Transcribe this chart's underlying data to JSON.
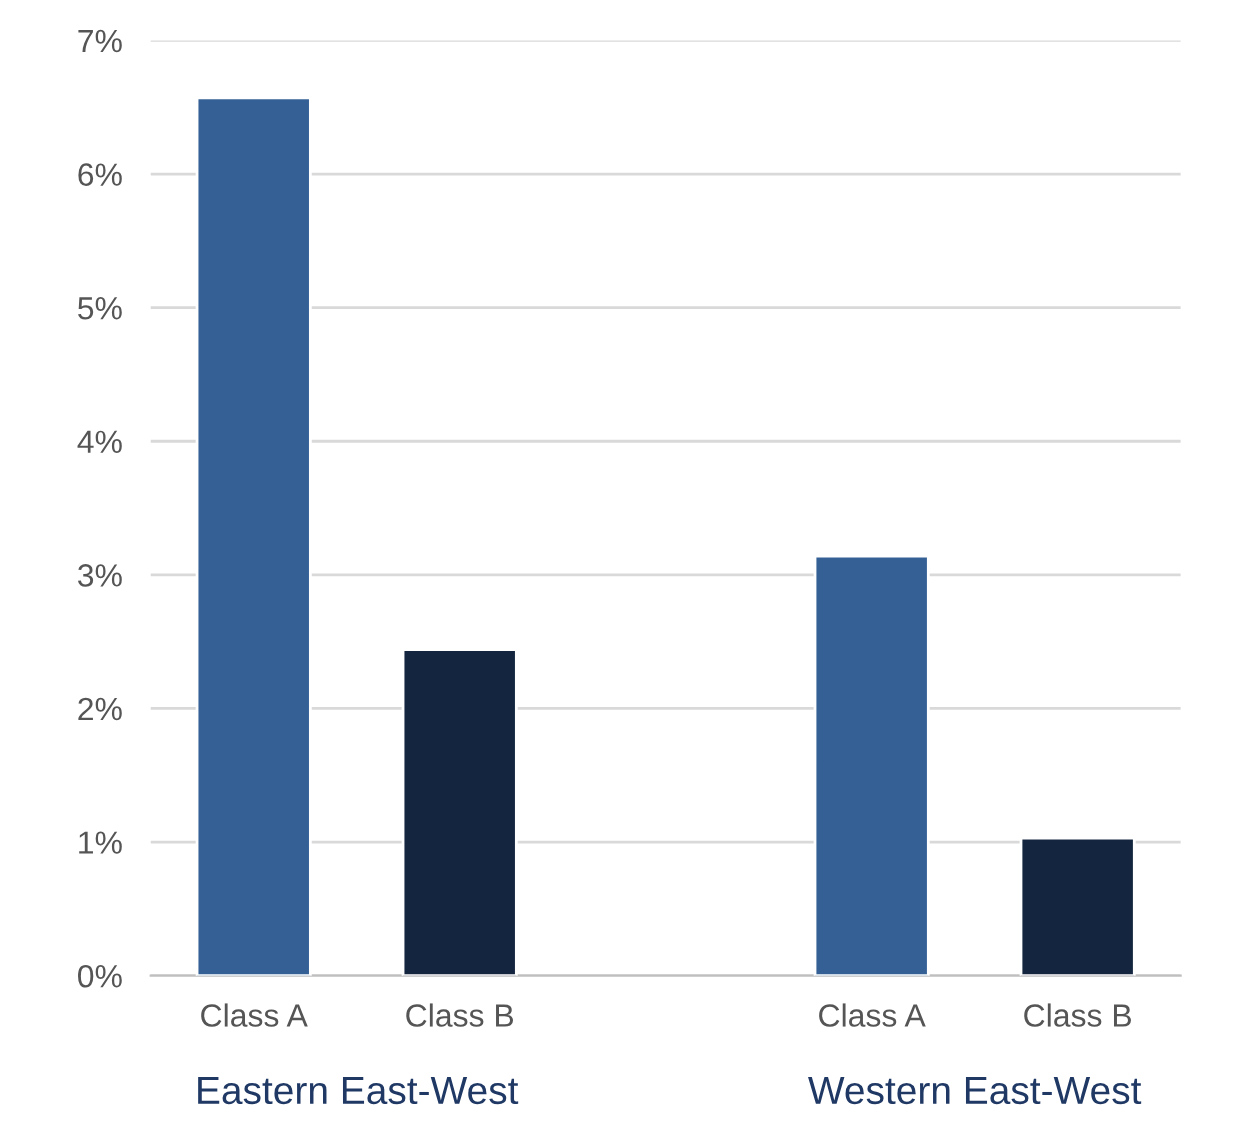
{
  "chart_data": {
    "type": "bar",
    "categories": [
      "Class A",
      "Class B",
      null,
      "Class A",
      "Class B"
    ],
    "values": [
      6.57,
      2.44,
      null,
      3.14,
      1.03
    ],
    "colors": [
      "#356096",
      "#14263f",
      "#356096",
      "#356096",
      "#14263f"
    ],
    "ylim": [
      0,
      7
    ],
    "yticks": [
      {
        "value": 0,
        "label": "0%"
      },
      {
        "value": 1,
        "label": "1%"
      },
      {
        "value": 2,
        "label": "2%"
      },
      {
        "value": 3,
        "label": "3%"
      },
      {
        "value": 4,
        "label": "4%"
      },
      {
        "value": 5,
        "label": "5%"
      },
      {
        "value": 6,
        "label": "6%"
      },
      {
        "value": 7,
        "label": "7%"
      }
    ],
    "grid": "y",
    "annotations": [
      "Eastern East-West",
      "Western East-West"
    ]
  }
}
